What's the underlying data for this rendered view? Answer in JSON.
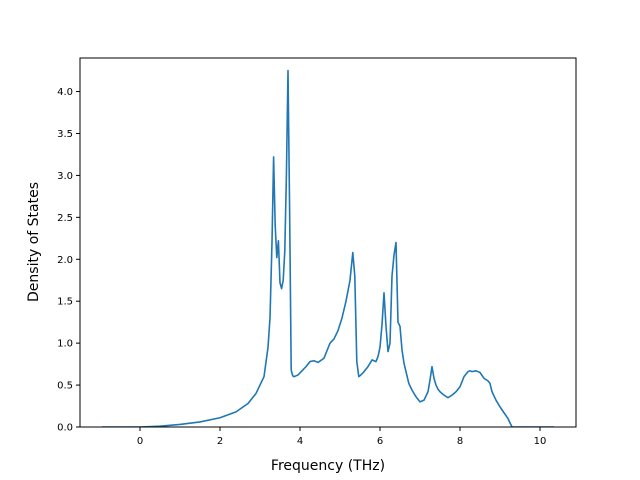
{
  "chart_data": {
    "type": "line",
    "title": "",
    "xlabel": "Frequency (THz)",
    "ylabel": "Density of States",
    "xlim": [
      -1.5,
      10.9
    ],
    "ylim": [
      0.0,
      4.4
    ],
    "xticks": [
      0,
      2,
      4,
      6,
      8,
      10
    ],
    "xtick_labels": [
      "0",
      "2",
      "4",
      "6",
      "8",
      "10"
    ],
    "yticks": [
      0.0,
      0.5,
      1.0,
      1.5,
      2.0,
      2.5,
      3.0,
      3.5,
      4.0
    ],
    "ytick_labels": [
      "0.0",
      "0.5",
      "1.0",
      "1.5",
      "2.0",
      "2.5",
      "3.0",
      "3.5",
      "4.0"
    ],
    "grid": false,
    "line_color": "#1f77b4",
    "series": [
      {
        "x": [
          -0.95,
          0.0,
          0.5,
          1.0,
          1.5,
          2.0,
          2.4,
          2.7,
          2.9,
          3.1,
          3.2,
          3.25,
          3.3,
          3.34,
          3.38,
          3.42,
          3.46,
          3.5,
          3.54,
          3.58,
          3.62,
          3.66,
          3.7,
          3.74,
          3.78,
          3.8,
          3.82,
          3.85,
          3.95,
          4.05,
          4.15,
          4.25,
          4.35,
          4.45,
          4.6,
          4.75,
          4.85,
          4.95,
          5.05,
          5.15,
          5.25,
          5.32,
          5.37,
          5.42,
          5.47,
          5.52,
          5.6,
          5.7,
          5.8,
          5.9,
          5.95,
          6.0,
          6.05,
          6.1,
          6.15,
          6.2,
          6.25,
          6.3,
          6.35,
          6.4,
          6.45,
          6.5,
          6.55,
          6.6,
          6.64,
          6.68,
          6.72,
          6.8,
          6.9,
          7.0,
          7.1,
          7.2,
          7.25,
          7.3,
          7.35,
          7.4,
          7.45,
          7.5,
          7.55,
          7.6,
          7.7,
          7.8,
          7.9,
          8.0,
          8.1,
          8.2,
          8.25,
          8.3,
          8.4,
          8.5,
          8.6,
          8.7,
          8.75,
          8.8,
          8.9,
          9.0,
          9.1,
          9.2,
          9.3,
          9.4,
          9.5,
          9.7,
          10.0,
          10.35
        ],
        "y": [
          0.0,
          0.0,
          0.01,
          0.03,
          0.06,
          0.11,
          0.18,
          0.28,
          0.4,
          0.6,
          0.95,
          1.3,
          2.2,
          3.22,
          2.4,
          2.02,
          2.22,
          1.72,
          1.65,
          1.75,
          2.1,
          3.0,
          4.25,
          2.6,
          0.68,
          0.64,
          0.61,
          0.6,
          0.62,
          0.67,
          0.72,
          0.78,
          0.79,
          0.77,
          0.82,
          1.0,
          1.05,
          1.15,
          1.3,
          1.5,
          1.75,
          2.08,
          1.8,
          0.78,
          0.6,
          0.62,
          0.66,
          0.72,
          0.8,
          0.78,
          0.84,
          0.95,
          1.22,
          1.6,
          1.2,
          0.9,
          1.0,
          1.8,
          2.05,
          2.2,
          1.25,
          1.2,
          0.92,
          0.76,
          0.68,
          0.6,
          0.52,
          0.44,
          0.36,
          0.3,
          0.32,
          0.42,
          0.56,
          0.72,
          0.58,
          0.5,
          0.45,
          0.42,
          0.4,
          0.38,
          0.35,
          0.38,
          0.42,
          0.48,
          0.6,
          0.66,
          0.67,
          0.66,
          0.67,
          0.65,
          0.58,
          0.55,
          0.52,
          0.42,
          0.32,
          0.24,
          0.17,
          0.1,
          0.0,
          0.0,
          0.0,
          0.0,
          0.0,
          0.0
        ]
      }
    ]
  }
}
